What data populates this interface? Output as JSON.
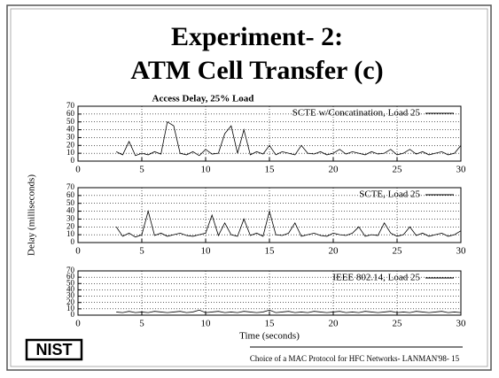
{
  "slide": {
    "title_line1": "Experiment- 2:",
    "title_line2": "ATM Cell Transfer (c)",
    "footer": "Choice of a MAC Protocol for HFC Networks- LANMAN'98- 15",
    "logo": "NIST"
  },
  "chart_data": [
    {
      "type": "line",
      "title": "Access Delay, 25% Load",
      "x": [
        3,
        3.5,
        4,
        4.5,
        5,
        5.5,
        6,
        6.5,
        7,
        7.5,
        8,
        8.5,
        9,
        9.5,
        10,
        10.5,
        11,
        11.5,
        12,
        12.5,
        13,
        13.5,
        14,
        14.5,
        15,
        15.5,
        16,
        16.5,
        17,
        17.5,
        18,
        18.5,
        19,
        19.5,
        20,
        20.5,
        21,
        21.5,
        22,
        22.5,
        23,
        23.5,
        24,
        24.5,
        25,
        25.5,
        26,
        26.5,
        27,
        27.5,
        28,
        28.5,
        29,
        29.5,
        30
      ],
      "series": [
        {
          "name": "SCTE w/Concatination, Load 25",
          "color": "#000000",
          "values": [
            12,
            8,
            25,
            7,
            10,
            8,
            12,
            9,
            50,
            45,
            10,
            8,
            12,
            7,
            15,
            9,
            10,
            35,
            45,
            10,
            40,
            8,
            12,
            9,
            20,
            8,
            12,
            10,
            8,
            20,
            10,
            9,
            12,
            8,
            10,
            15,
            9,
            12,
            10,
            8,
            12,
            9,
            10,
            15,
            8,
            10,
            15,
            9,
            12,
            8,
            10,
            12,
            8,
            10,
            20
          ]
        }
      ],
      "xlim": [
        0,
        30
      ],
      "xticks": [
        0,
        5,
        10,
        15,
        20,
        25,
        30
      ],
      "ylim": [
        0,
        70
      ],
      "yticks": [
        0,
        10,
        20,
        30,
        40,
        50,
        60,
        70
      ],
      "grid": true,
      "legend": "top-right"
    },
    {
      "type": "line",
      "ylabel": "Delay (milliseconds)",
      "x": [
        3,
        3.5,
        4,
        4.5,
        5,
        5.5,
        6,
        6.5,
        7,
        7.5,
        8,
        8.5,
        9,
        9.5,
        10,
        10.5,
        11,
        11.5,
        12,
        12.5,
        13,
        13.5,
        14,
        14.5,
        15,
        15.5,
        16,
        16.5,
        17,
        17.5,
        18,
        18.5,
        19,
        19.5,
        20,
        20.5,
        21,
        21.5,
        22,
        22.5,
        23,
        23.5,
        24,
        24.5,
        25,
        25.5,
        26,
        26.5,
        27,
        27.5,
        28,
        28.5,
        29,
        29.5,
        30
      ],
      "series": [
        {
          "name": "SCTE, Load 25",
          "color": "#000000",
          "values": [
            20,
            8,
            12,
            7,
            10,
            40,
            9,
            12,
            8,
            10,
            12,
            9,
            8,
            10,
            12,
            35,
            9,
            25,
            10,
            8,
            30,
            9,
            12,
            8,
            40,
            10,
            9,
            12,
            25,
            8,
            10,
            12,
            9,
            8,
            12,
            10,
            9,
            12,
            20,
            8,
            10,
            9,
            25,
            12,
            8,
            10,
            20,
            9,
            12,
            8,
            10,
            12,
            8,
            10,
            15
          ]
        }
      ],
      "xlim": [
        0,
        30
      ],
      "xticks": [
        0,
        5,
        10,
        15,
        20,
        25,
        30
      ],
      "ylim": [
        0,
        70
      ],
      "yticks": [
        0,
        10,
        20,
        30,
        40,
        50,
        60,
        70
      ],
      "grid": true,
      "legend": "top-right"
    },
    {
      "type": "line",
      "xlabel": "Time (seconds)",
      "x": [
        3,
        3.5,
        4,
        4.5,
        5,
        5.5,
        6,
        6.5,
        7,
        7.5,
        8,
        8.5,
        9,
        9.5,
        10,
        10.5,
        11,
        11.5,
        12,
        12.5,
        13,
        13.5,
        14,
        14.5,
        15,
        15.5,
        16,
        16.5,
        17,
        17.5,
        18,
        18.5,
        19,
        19.5,
        20,
        20.5,
        21,
        21.5,
        22,
        22.5,
        23,
        23.5,
        24,
        24.5,
        25,
        25.5,
        26,
        26.5,
        27,
        27.5,
        28,
        28.5,
        29,
        29.5,
        30
      ],
      "series": [
        {
          "name": "IEEE 802.14, Load 25",
          "color": "#000000",
          "values": [
            5,
            4,
            6,
            4,
            5,
            4,
            6,
            5,
            4,
            5,
            6,
            4,
            5,
            8,
            4,
            5,
            6,
            4,
            5,
            4,
            6,
            5,
            4,
            5,
            8,
            4,
            5,
            6,
            4,
            5,
            4,
            6,
            5,
            4,
            5,
            6,
            4,
            5,
            4,
            6,
            5,
            4,
            5,
            6,
            4,
            5,
            4,
            6,
            5,
            4,
            5,
            6,
            4,
            5,
            4
          ]
        }
      ],
      "xlim": [
        0,
        30
      ],
      "xticks": [
        0,
        5,
        10,
        15,
        20,
        25,
        30
      ],
      "ylim": [
        0,
        70
      ],
      "yticks": [
        0,
        10,
        20,
        30,
        40,
        50,
        60,
        70
      ],
      "grid": true,
      "legend": "top-right"
    }
  ]
}
